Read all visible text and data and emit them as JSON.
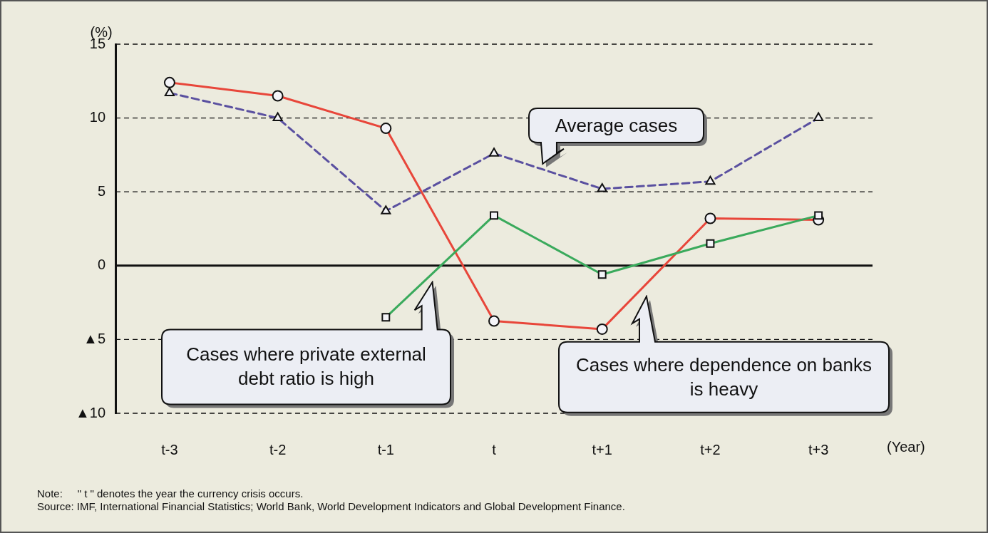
{
  "chart_data": {
    "type": "line",
    "ylabel": "(%)",
    "xlabel": "(Year)",
    "categories": [
      "t-3",
      "t-2",
      "t-1",
      "t",
      "t+1",
      "t+2",
      "t+3"
    ],
    "ylim": [
      -10,
      15
    ],
    "yticks": [
      {
        "value": -10,
        "label": "▲10"
      },
      {
        "value": -5,
        "label": "▲5"
      },
      0,
      5,
      10,
      15
    ],
    "grid": "y",
    "legend": false,
    "series": [
      {
        "name": "Average cases",
        "color": "#5a50a0",
        "line_style": "dashed",
        "marker": "triangle",
        "values": [
          11.7,
          10.0,
          3.7,
          7.6,
          5.2,
          5.7,
          10.0
        ]
      },
      {
        "name": "Cases where private external debt ratio is high",
        "color": "#3aaa5c",
        "line_style": "solid",
        "marker": "square",
        "values": [
          null,
          null,
          -3.5,
          3.4,
          -0.6,
          1.5,
          3.4
        ]
      },
      {
        "name": "Cases where dependence on banks is heavy",
        "color": "#e8463a",
        "line_style": "solid",
        "marker": "circle",
        "values": [
          12.4,
          11.5,
          9.3,
          -3.75,
          -4.3,
          3.2,
          3.1
        ]
      }
    ],
    "annotations": [
      "Note:     \" t \" denotes the year the currency crisis occurs.",
      "Source: IMF, International Financial Statistics; World Bank, World Development Indicators and Global Development Finance."
    ]
  }
}
